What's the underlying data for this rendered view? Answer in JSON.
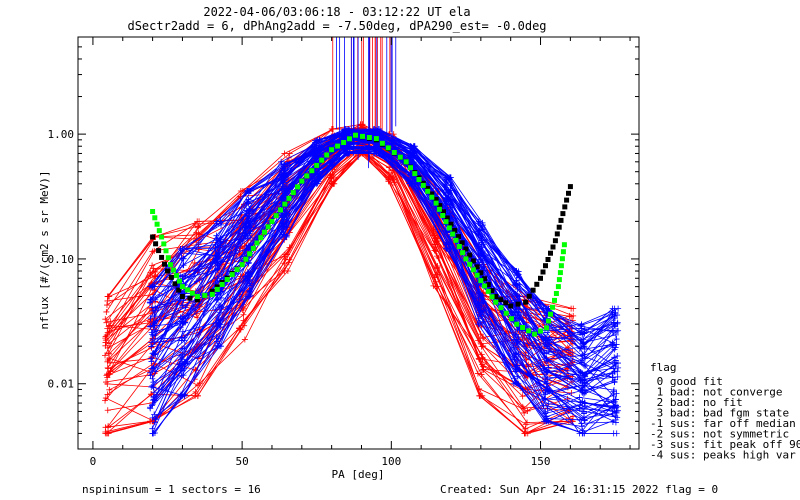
{
  "chart_data": {
    "type": "line",
    "title": [
      "2022-04-06/03:06:18 - 03:12:22 UT ela",
      "dSectr2add = 6, dPhAng2add = -7.50deg, dPA290_est=  -0.0deg"
    ],
    "xlabel": "PA [deg]",
    "ylabel": "nflux [#/(cm2 s sr MeV)]",
    "xlim": [
      -5,
      183
    ],
    "ylim": [
      0.003,
      6
    ],
    "y_scale": "log",
    "x_ticks": [
      0,
      50,
      100,
      150
    ],
    "x_tick_labels": [
      "0",
      "50",
      "100",
      "150"
    ],
    "y_ticks": [
      0.01,
      0.1,
      1.0
    ],
    "y_tick_labels": [
      "0.01",
      "0.10",
      "1.00"
    ],
    "grid": false,
    "series": [
      {
        "color": "#ff0000",
        "style": "many-lines-plus-markers",
        "x": [
          5,
          20,
          35,
          50,
          65,
          80,
          90,
          100,
          115,
          130,
          145,
          160
        ],
        "y_band_low": [
          0.004,
          0.005,
          0.008,
          0.02,
          0.08,
          0.4,
          0.7,
          0.4,
          0.06,
          0.008,
          0.004,
          0.005
        ],
        "y_band_high": [
          0.05,
          0.15,
          0.2,
          0.35,
          0.7,
          1.1,
          1.2,
          1.0,
          0.35,
          0.09,
          0.05,
          0.04
        ]
      },
      {
        "color": "#0000ff",
        "style": "many-lines-plus-markers",
        "x": [
          20,
          30,
          42,
          52,
          64,
          75,
          85,
          95,
          107,
          119,
          130,
          142,
          152,
          164,
          175
        ],
        "y_band_low": [
          0.004,
          0.008,
          0.02,
          0.05,
          0.15,
          0.4,
          0.7,
          0.7,
          0.4,
          0.12,
          0.03,
          0.01,
          0.005,
          0.004,
          0.004
        ],
        "y_band_high": [
          0.06,
          0.12,
          0.2,
          0.35,
          0.6,
          0.9,
          1.1,
          1.1,
          0.8,
          0.45,
          0.2,
          0.08,
          0.04,
          0.03,
          0.04
        ]
      },
      {
        "color": "#000000",
        "style": "thick-dotted",
        "x": [
          20,
          25,
          30,
          35,
          40,
          50,
          60,
          70,
          80,
          88,
          95,
          105,
          115,
          125,
          135,
          140,
          145,
          150,
          155,
          160
        ],
        "y": [
          0.15,
          0.08,
          0.05,
          0.047,
          0.055,
          0.09,
          0.2,
          0.42,
          0.75,
          0.98,
          0.9,
          0.6,
          0.3,
          0.12,
          0.05,
          0.042,
          0.045,
          0.07,
          0.14,
          0.38
        ]
      },
      {
        "color": "#00ff00",
        "style": "thick-dotted",
        "x": [
          20,
          23,
          26,
          30,
          35,
          40,
          50,
          60,
          70,
          80,
          88,
          95,
          105,
          115,
          125,
          135,
          142,
          148,
          152,
          156,
          158
        ],
        "y": [
          0.24,
          0.15,
          0.09,
          0.06,
          0.05,
          0.052,
          0.09,
          0.2,
          0.42,
          0.75,
          0.98,
          0.92,
          0.6,
          0.28,
          0.1,
          0.045,
          0.03,
          0.025,
          0.028,
          0.06,
          0.13
        ]
      }
    ],
    "legend": {
      "position": "right",
      "title": "flag",
      "items": [
        " 0 good fit",
        " 1 bad: not converge",
        " 2 bad: no fit",
        " 3 bad: bad fgm state",
        "-1 sus: far off median",
        "-2 sus: not symmetric",
        "-3 sus: fit peak off 90",
        "-4 sus: peaks high var"
      ]
    },
    "footer": {
      "left": "nspininsum =  1  sectors = 16",
      "right": "Created: Sun Apr 24 16:31:15 2022   flag = 0"
    }
  }
}
